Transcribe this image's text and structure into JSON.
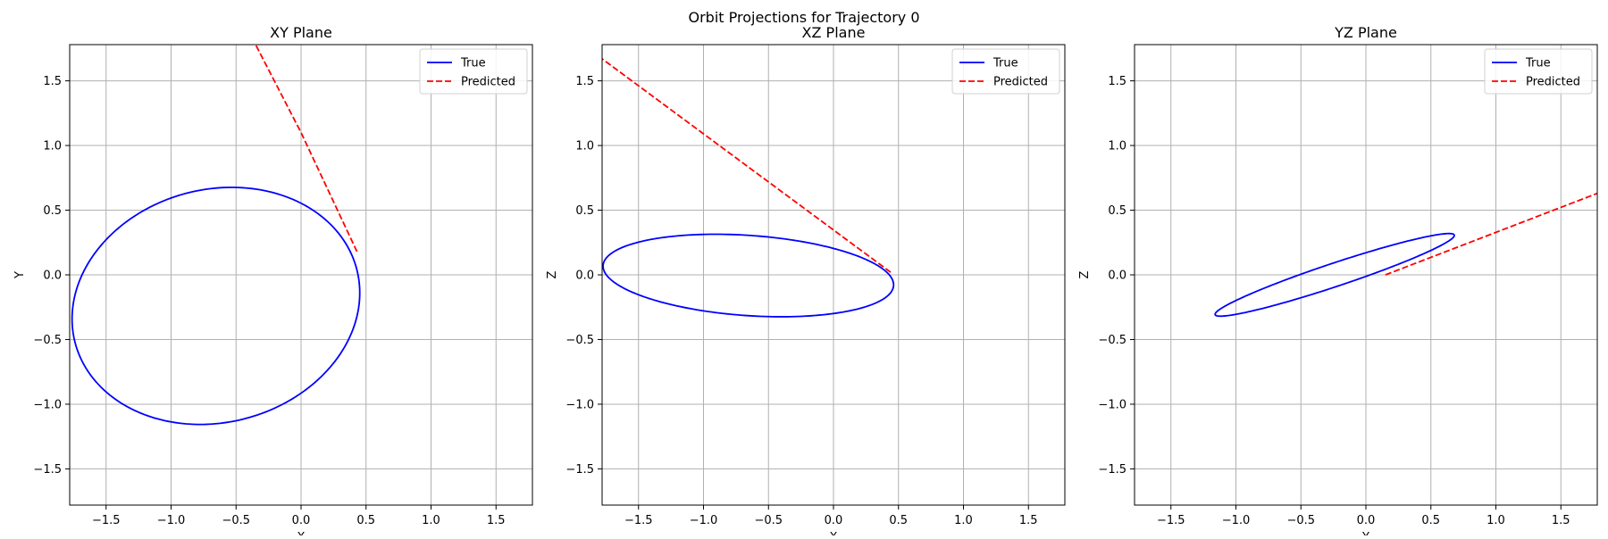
{
  "figure": {
    "suptitle": "Orbit Projections for Trajectory 0"
  },
  "legend_labels": {
    "true": "True",
    "predicted": "Predicted"
  },
  "colors": {
    "true": "#0000ff",
    "predicted": "#ff0000",
    "grid": "#b0b0b0"
  },
  "chart_data": [
    {
      "type": "line",
      "title": "XY Plane",
      "xlabel": "X",
      "ylabel": "Y",
      "xlim": [
        -1.78,
        1.78
      ],
      "ylim": [
        -1.78,
        1.78
      ],
      "xticks": [
        "-1.5",
        "-1.0",
        "-0.5",
        "0.0",
        "0.5",
        "1.0",
        "1.5"
      ],
      "yticks": [
        "-1.5",
        "-1.0",
        "-0.5",
        "0.0",
        "0.5",
        "1.0",
        "1.5"
      ],
      "grid": true,
      "legend": "top-right",
      "series": [
        {
          "name": "True",
          "style": "solid",
          "color": "#0000ff",
          "shape": "ellipse",
          "center": [
            -0.655,
            -0.24
          ],
          "radius_x": 1.12,
          "radius_y": 0.9,
          "rotation_deg": 15
        },
        {
          "name": "Predicted",
          "style": "dashed",
          "color": "#ff0000",
          "points": [
            [
              0.43,
              0.18
            ],
            [
              0.0,
              1.1
            ],
            [
              -0.36,
              1.8
            ]
          ]
        }
      ]
    },
    {
      "type": "line",
      "title": "XZ Plane",
      "xlabel": "X",
      "ylabel": "Z",
      "xlim": [
        -1.78,
        1.78
      ],
      "ylim": [
        -1.78,
        1.78
      ],
      "xticks": [
        "-1.5",
        "-1.0",
        "-0.5",
        "0.0",
        "0.5",
        "1.0",
        "1.5"
      ],
      "yticks": [
        "-1.5",
        "-1.0",
        "-0.5",
        "0.0",
        "0.5",
        "1.0",
        "1.5"
      ],
      "grid": true,
      "legend": "top-right",
      "series": [
        {
          "name": "True",
          "style": "solid",
          "color": "#0000ff",
          "shape": "ellipse",
          "center": [
            -0.655,
            -0.005
          ],
          "radius_x": 1.12,
          "radius_y": 0.31,
          "rotation_deg": -4
        },
        {
          "name": "Predicted",
          "style": "dashed",
          "color": "#ff0000",
          "points": [
            [
              0.44,
              0.02
            ],
            [
              -1.78,
              1.67
            ]
          ]
        }
      ]
    },
    {
      "type": "line",
      "title": "YZ Plane",
      "xlabel": "Y",
      "ylabel": "Z",
      "xlim": [
        -1.78,
        1.78
      ],
      "ylim": [
        -1.78,
        1.78
      ],
      "xticks": [
        "-1.5",
        "-1.0",
        "-0.5",
        "0.0",
        "0.5",
        "1.0",
        "1.5"
      ],
      "yticks": [
        "-1.5",
        "-1.0",
        "-0.5",
        "0.0",
        "0.5",
        "1.0",
        "1.5"
      ],
      "grid": true,
      "legend": "top-right",
      "series": [
        {
          "name": "True",
          "style": "solid",
          "color": "#0000ff",
          "shape": "ellipse",
          "center": [
            -0.24,
            0.0
          ],
          "radius_x": 0.97,
          "radius_y": 0.09,
          "rotation_deg": 18.5
        },
        {
          "name": "Predicted",
          "style": "dashed",
          "color": "#ff0000",
          "points": [
            [
              0.15,
              0.0
            ],
            [
              1.78,
              0.63
            ]
          ]
        }
      ]
    }
  ]
}
